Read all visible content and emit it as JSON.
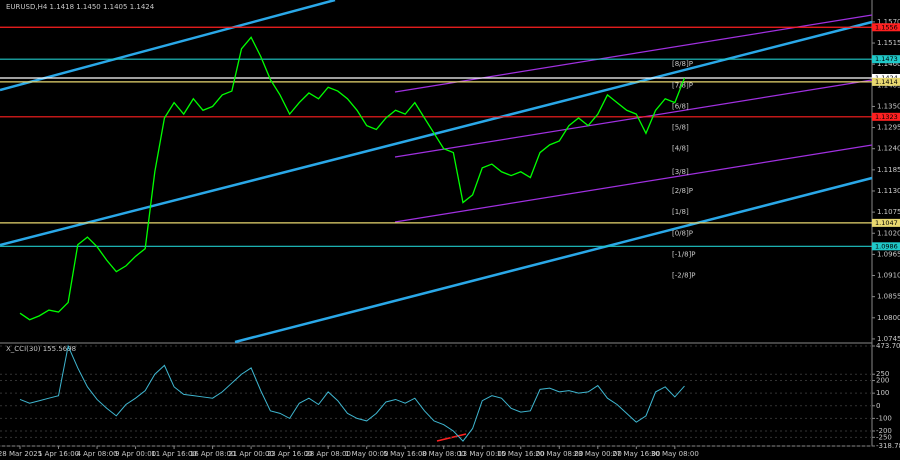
{
  "chart_data": {
    "type": "line",
    "title": "EURUSD,H4 1.1418 1.1450 1.1405 1.1424",
    "categories": [
      "28 Mar 2025",
      null,
      null,
      null,
      "1 Apr 16:00",
      null,
      null,
      null,
      "4 Apr 08:00",
      null,
      null,
      null,
      "9 Apr 00:00",
      null,
      null,
      null,
      "11 Apr 16:00",
      null,
      null,
      null,
      "16 Apr 08:00",
      null,
      null,
      null,
      "21 Apr 00:00",
      null,
      null,
      null,
      "23 Apr 16:00",
      null,
      null,
      null,
      "28 Apr 08:00",
      null,
      null,
      null,
      "1 May 00:00",
      null,
      null,
      null,
      "5 May 16:00",
      null,
      null,
      null,
      "8 May 08:00",
      null,
      null,
      null,
      "13 May 00:00",
      null,
      null,
      null,
      "15 May 16:00",
      null,
      null,
      null,
      "20 May 08:00",
      null,
      null,
      null,
      "23 May 00:00",
      null,
      null,
      null,
      "27 May 16:00",
      null,
      null,
      null,
      "30 May 08:00",
      null
    ],
    "series": [
      {
        "color": "#00ff00",
        "values": [
          1.0812,
          1.0795,
          1.0805,
          1.082,
          1.0815,
          1.084,
          1.099,
          1.101,
          1.0985,
          1.095,
          1.092,
          1.0935,
          1.096,
          1.098,
          1.118,
          1.132,
          1.136,
          1.133,
          1.137,
          1.134,
          1.135,
          1.138,
          1.139,
          1.15,
          1.153,
          1.148,
          1.142,
          1.138,
          1.133,
          1.136,
          1.1385,
          1.137,
          1.14,
          1.139,
          1.137,
          1.134,
          1.13,
          1.129,
          1.132,
          1.134,
          1.133,
          1.136,
          1.132,
          1.128,
          1.124,
          1.123,
          1.11,
          1.112,
          1.119,
          1.12,
          1.118,
          1.117,
          1.118,
          1.1165,
          1.123,
          1.125,
          1.126,
          1.13,
          1.132,
          1.13,
          1.133,
          1.138,
          1.136,
          1.134,
          1.133,
          1.128,
          1.134,
          1.137,
          1.136,
          1.1424
        ]
      }
    ],
    "ylim": [
      1.0737,
      1.1627
    ],
    "yticks": [
      {
        "value": 1.157,
        "label": "1.1570"
      },
      1.1515,
      {
        "value": 1.146,
        "label": "1.1460"
      },
      1.1405,
      {
        "value": 1.135,
        "label": "1.1350"
      },
      1.1295,
      {
        "value": 1.124,
        "label": "1.1240"
      },
      1.1185,
      {
        "value": 1.113,
        "label": "1.1130"
      },
      1.1075,
      {
        "value": 1.102,
        "label": "1.1020"
      },
      1.0965,
      {
        "value": 1.091,
        "label": "1.0910"
      },
      1.0855,
      {
        "value": 1.08,
        "label": "1.0800"
      },
      1.0745
    ],
    "levels": [
      {
        "value": 1.1556,
        "color": "#ff2020"
      },
      {
        "value": 1.1473,
        "color": "#20c8c8"
      },
      {
        "value": 1.1424,
        "color": "#ffffff"
      },
      {
        "value": 1.1414,
        "color": "#e8d870"
      },
      {
        "value": 1.1323,
        "color": "#ff2020"
      },
      {
        "value": 1.1047,
        "color": "#e8d870"
      },
      {
        "value": 1.0986,
        "color": "#20c8c8"
      }
    ],
    "murray": [
      {
        "label": "[8/8]P",
        "value": 1.146
      },
      {
        "label": "[7/8]P",
        "value": 1.1405
      },
      {
        "label": "[6/8]",
        "value": 1.135
      },
      {
        "label": "[5/8]",
        "value": 1.1295
      },
      {
        "label": "[4/8]",
        "value": 1.124
      },
      {
        "label": "[3/8]",
        "value": 1.118
      },
      {
        "label": "[2/8]P",
        "value": 1.113
      },
      {
        "label": "[1/8]",
        "value": 1.1075
      },
      {
        "label": "[0/8]P",
        "value": 1.102
      },
      {
        "label": "[-1/8]P",
        "value": 1.0965
      },
      {
        "label": "[-2/8]P",
        "value": 1.091
      }
    ],
    "cci": {
      "title": "X_CCI(30) 155.5698",
      "color": "#3fb6d0",
      "values": [
        50,
        20,
        40,
        60,
        80,
        473,
        300,
        150,
        50,
        -20,
        -80,
        10,
        60,
        120,
        250,
        320,
        150,
        90,
        80,
        70,
        60,
        110,
        180,
        250,
        300,
        120,
        -40,
        -60,
        -100,
        20,
        60,
        10,
        110,
        40,
        -60,
        -100,
        -120,
        -60,
        30,
        50,
        20,
        60,
        -40,
        -120,
        -150,
        -200,
        -280,
        -180,
        40,
        80,
        60,
        -20,
        -50,
        -40,
        130,
        140,
        110,
        120,
        100,
        110,
        160,
        60,
        10,
        -60,
        -130,
        -80,
        110,
        150,
        70,
        156
      ],
      "ylim": [
        -318.786,
        473.707
      ],
      "yticks": [
        473.707,
        250,
        200,
        100,
        0,
        -100,
        -200,
        -250,
        -318.786
      ]
    }
  }
}
